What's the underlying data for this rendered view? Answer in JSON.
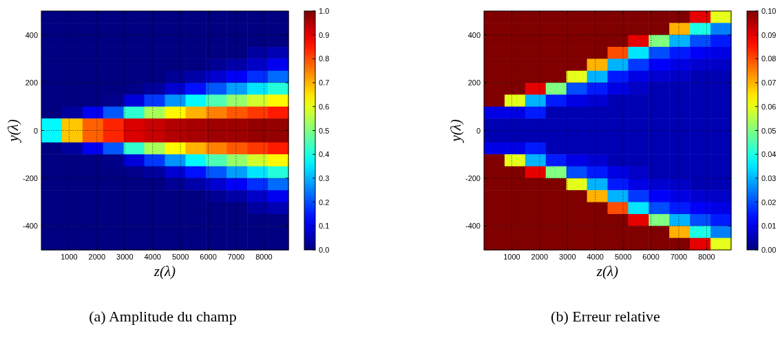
{
  "chart_data": [
    {
      "type": "heatmap",
      "title": "(a) Amplitude du champ",
      "xlabel": "z(λ)",
      "ylabel": "y(λ)",
      "xlim": [
        0,
        8880
      ],
      "ylim": [
        -500,
        500
      ],
      "xticks": [
        1000,
        2000,
        3000,
        4000,
        5000,
        6000,
        7000,
        8000
      ],
      "yticks": [
        -400,
        -200,
        0,
        200,
        400
      ],
      "grid": true,
      "clim": [
        0,
        1
      ],
      "cticks": [
        {
          "value": 0,
          "label": "0.0"
        },
        {
          "value": 0.1,
          "label": "0.1"
        },
        {
          "value": 0.2,
          "label": "0.2"
        },
        {
          "value": 0.3,
          "label": "0.3"
        },
        {
          "value": 0.4,
          "label": "0.4"
        },
        {
          "value": 0.5,
          "label": "0.5"
        },
        {
          "value": 0.6,
          "label": "0.6"
        },
        {
          "value": 0.7,
          "label": "0.7"
        },
        {
          "value": 0.8,
          "label": "0.8"
        },
        {
          "value": 0.9,
          "label": "0.9"
        },
        {
          "value": 1,
          "label": "1.0"
        }
      ],
      "cells": [
        [
          0,
          0,
          0,
          0,
          0,
          0,
          0,
          0,
          0,
          0,
          0,
          0
        ],
        [
          0,
          0,
          0,
          0,
          0,
          0,
          0,
          0,
          0,
          0,
          0,
          0
        ],
        [
          0,
          0,
          0,
          0,
          0,
          0,
          0,
          0,
          0,
          0,
          0,
          0
        ],
        [
          0,
          0,
          0,
          0,
          0,
          0,
          0,
          0,
          0,
          0,
          0.03,
          0.05
        ],
        [
          0,
          0,
          0,
          0,
          0,
          0,
          0,
          0,
          0.02,
          0.04,
          0.07,
          0.11
        ],
        [
          0,
          0,
          0,
          0,
          0,
          0,
          0.02,
          0.04,
          0.08,
          0.12,
          0.17,
          0.23
        ],
        [
          0,
          0,
          0,
          0,
          0.01,
          0.03,
          0.08,
          0.14,
          0.21,
          0.28,
          0.35,
          0.41
        ],
        [
          0,
          0,
          0,
          0.01,
          0.09,
          0.18,
          0.27,
          0.37,
          0.45,
          0.52,
          0.58,
          0.63
        ],
        [
          0,
          0.03,
          0.11,
          0.21,
          0.42,
          0.54,
          0.63,
          0.7,
          0.75,
          0.79,
          0.82,
          0.85
        ],
        [
          0.37,
          0.68,
          0.78,
          0.84,
          0.91,
          0.93,
          0.95,
          0.96,
          0.97,
          0.97,
          0.98,
          0.98
        ],
        [
          0.37,
          0.68,
          0.78,
          0.84,
          0.91,
          0.93,
          0.95,
          0.96,
          0.97,
          0.97,
          0.98,
          0.98
        ],
        [
          0,
          0.03,
          0.11,
          0.21,
          0.42,
          0.54,
          0.63,
          0.7,
          0.75,
          0.79,
          0.82,
          0.85
        ],
        [
          0,
          0,
          0,
          0.01,
          0.09,
          0.18,
          0.27,
          0.37,
          0.45,
          0.52,
          0.58,
          0.63
        ],
        [
          0,
          0,
          0,
          0,
          0.01,
          0.03,
          0.08,
          0.14,
          0.21,
          0.28,
          0.35,
          0.41
        ],
        [
          0,
          0,
          0,
          0,
          0,
          0,
          0.02,
          0.04,
          0.08,
          0.12,
          0.17,
          0.23
        ],
        [
          0,
          0,
          0,
          0,
          0,
          0,
          0,
          0,
          0.02,
          0.04,
          0.07,
          0.11
        ],
        [
          0,
          0,
          0,
          0,
          0,
          0,
          0,
          0,
          0,
          0,
          0.03,
          0.05
        ],
        [
          0,
          0,
          0,
          0,
          0,
          0,
          0,
          0,
          0,
          0,
          0,
          0
        ],
        [
          0,
          0,
          0,
          0,
          0,
          0,
          0,
          0,
          0,
          0,
          0,
          0
        ],
        [
          0,
          0,
          0,
          0,
          0,
          0,
          0,
          0,
          0,
          0,
          0,
          0
        ]
      ]
    },
    {
      "type": "heatmap",
      "title": "(b) Erreur relative",
      "xlabel": "z(λ)",
      "ylabel": "y(λ)",
      "xlim": [
        0,
        8880
      ],
      "ylim": [
        -500,
        500
      ],
      "xticks": [
        1000,
        2000,
        3000,
        4000,
        5000,
        6000,
        7000,
        8000
      ],
      "yticks": [
        -400,
        -200,
        0,
        200,
        400
      ],
      "grid": true,
      "clim": [
        0,
        0.1
      ],
      "cticks": [
        {
          "value": 0,
          "label": "0.00"
        },
        {
          "value": 0.01,
          "label": "0.01"
        },
        {
          "value": 0.02,
          "label": "0.02"
        },
        {
          "value": 0.03,
          "label": "0.03"
        },
        {
          "value": 0.04,
          "label": "0.04"
        },
        {
          "value": 0.05,
          "label": "0.05"
        },
        {
          "value": 0.06,
          "label": "0.06"
        },
        {
          "value": 0.07,
          "label": "0.07"
        },
        {
          "value": 0.08,
          "label": "0.08"
        },
        {
          "value": 0.09,
          "label": "0.09"
        },
        {
          "value": 0.1,
          "label": "0.10"
        }
      ],
      "cells": [
        [
          0.1,
          0.1,
          0.1,
          0.1,
          0.1,
          0.1,
          0.1,
          0.1,
          0.1,
          0.1,
          0.09,
          0.06
        ],
        [
          0.1,
          0.1,
          0.1,
          0.1,
          0.1,
          0.1,
          0.1,
          0.1,
          0.1,
          0.07,
          0.04,
          0.025
        ],
        [
          0.1,
          0.1,
          0.1,
          0.1,
          0.1,
          0.1,
          0.1,
          0.09,
          0.05,
          0.03,
          0.02,
          0.015
        ],
        [
          0.1,
          0.1,
          0.1,
          0.1,
          0.1,
          0.1,
          0.08,
          0.035,
          0.02,
          0.015,
          0.012,
          0.01
        ],
        [
          0.1,
          0.1,
          0.1,
          0.1,
          0.1,
          0.07,
          0.03,
          0.018,
          0.012,
          0.01,
          0.008,
          0.007
        ],
        [
          0.1,
          0.1,
          0.1,
          0.1,
          0.06,
          0.03,
          0.015,
          0.01,
          0.008,
          0.007,
          0.005,
          0.005
        ],
        [
          0.1,
          0.1,
          0.09,
          0.05,
          0.02,
          0.015,
          0.01,
          0.007,
          0.005,
          0.005,
          0.005,
          0.005
        ],
        [
          0.1,
          0.06,
          0.03,
          0.015,
          0.01,
          0.008,
          0.005,
          0.005,
          0.005,
          0.005,
          0.005,
          0.005
        ],
        [
          0.01,
          0.01,
          0.015,
          0.005,
          0.005,
          0.005,
          0.005,
          0.005,
          0.005,
          0.005,
          0.005,
          0.005
        ],
        [
          0.005,
          0.005,
          0.005,
          0.005,
          0.005,
          0.005,
          0.005,
          0.005,
          0.005,
          0.005,
          0.005,
          0.005
        ],
        [
          0.005,
          0.005,
          0.005,
          0.005,
          0.005,
          0.005,
          0.005,
          0.005,
          0.005,
          0.005,
          0.005,
          0.005
        ],
        [
          0.01,
          0.01,
          0.015,
          0.005,
          0.005,
          0.005,
          0.005,
          0.005,
          0.005,
          0.005,
          0.005,
          0.005
        ],
        [
          0.1,
          0.06,
          0.03,
          0.015,
          0.01,
          0.008,
          0.005,
          0.005,
          0.005,
          0.005,
          0.005,
          0.005
        ],
        [
          0.1,
          0.1,
          0.09,
          0.05,
          0.02,
          0.015,
          0.01,
          0.007,
          0.005,
          0.005,
          0.005,
          0.005
        ],
        [
          0.1,
          0.1,
          0.1,
          0.1,
          0.06,
          0.03,
          0.015,
          0.01,
          0.008,
          0.007,
          0.005,
          0.005
        ],
        [
          0.1,
          0.1,
          0.1,
          0.1,
          0.1,
          0.07,
          0.03,
          0.018,
          0.012,
          0.01,
          0.008,
          0.007
        ],
        [
          0.1,
          0.1,
          0.1,
          0.1,
          0.1,
          0.1,
          0.08,
          0.035,
          0.02,
          0.015,
          0.012,
          0.01
        ],
        [
          0.1,
          0.1,
          0.1,
          0.1,
          0.1,
          0.1,
          0.1,
          0.09,
          0.05,
          0.03,
          0.02,
          0.015
        ],
        [
          0.1,
          0.1,
          0.1,
          0.1,
          0.1,
          0.1,
          0.1,
          0.1,
          0.1,
          0.07,
          0.04,
          0.025
        ],
        [
          0.1,
          0.1,
          0.1,
          0.1,
          0.1,
          0.1,
          0.1,
          0.1,
          0.1,
          0.1,
          0.09,
          0.06
        ]
      ]
    }
  ]
}
